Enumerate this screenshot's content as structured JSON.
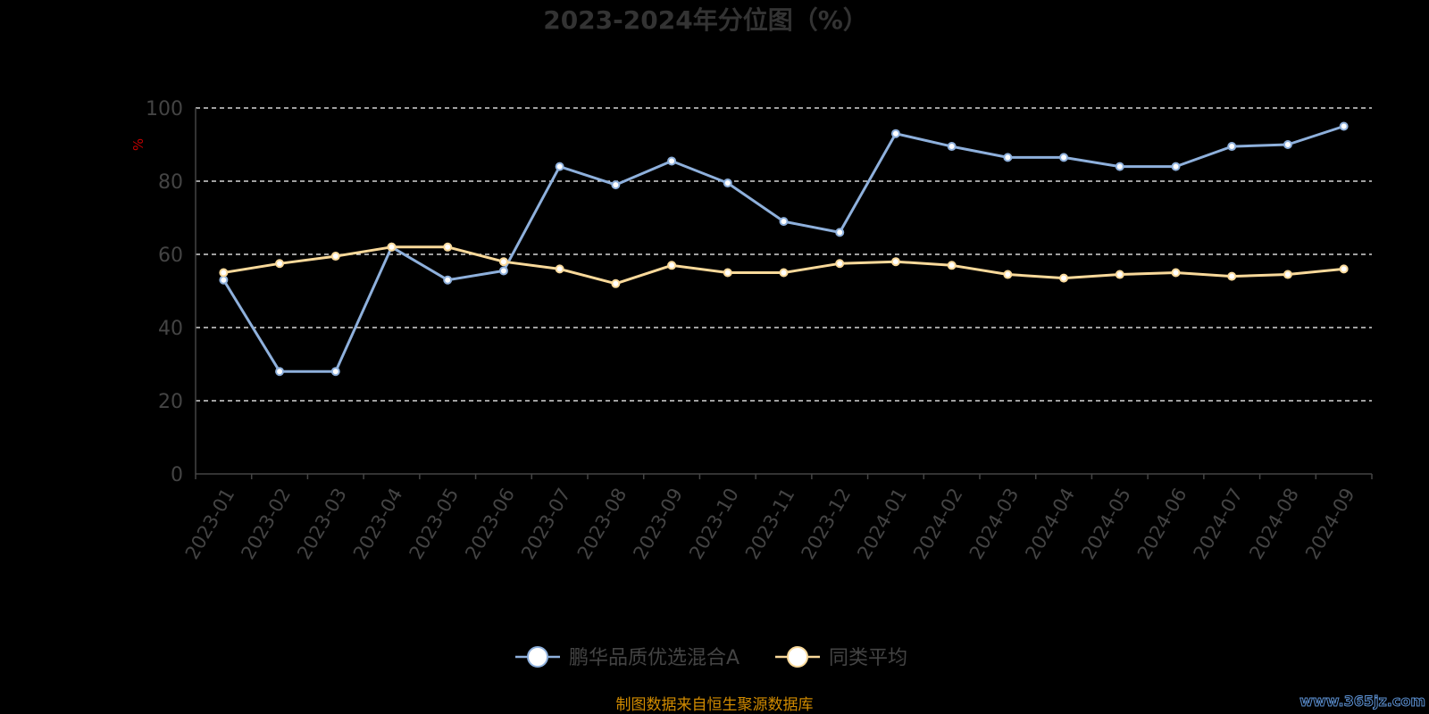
{
  "chart_data": {
    "type": "line",
    "title": "2023-2024年分位图（%）",
    "ylabel": "%",
    "xlabel": "",
    "ylim": [
      0,
      100
    ],
    "yticks": [
      0,
      20,
      40,
      60,
      80,
      100
    ],
    "grid": true,
    "legend_position": "bottom",
    "categories": [
      "2023-01",
      "2023-02",
      "2023-03",
      "2023-04",
      "2023-05",
      "2023-06",
      "2023-07",
      "2023-08",
      "2023-09",
      "2023-10",
      "2023-11",
      "2023-12",
      "2024-01",
      "2024-02",
      "2024-03",
      "2024-04",
      "2024-05",
      "2024-06",
      "2024-07",
      "2024-08",
      "2024-09"
    ],
    "series": [
      {
        "name": "鹏华品质优选混合A",
        "color": "#8eb0dc",
        "values": [
          53,
          28,
          28,
          62,
          53,
          55.5,
          84,
          79,
          85.5,
          79.5,
          69,
          66,
          93,
          89.5,
          86.5,
          86.5,
          84,
          84,
          89.5,
          90,
          95
        ]
      },
      {
        "name": "同类平均",
        "color": "#f9d99a",
        "values": [
          55,
          57.5,
          59.5,
          62,
          62,
          58,
          56,
          52,
          57,
          55,
          55,
          57.5,
          58,
          57,
          54.5,
          53.5,
          54.5,
          55,
          54,
          54.5,
          56
        ]
      }
    ]
  },
  "footer": {
    "source": "制图数据来自恒生聚源数据库",
    "watermark": "www.365jz.com"
  }
}
